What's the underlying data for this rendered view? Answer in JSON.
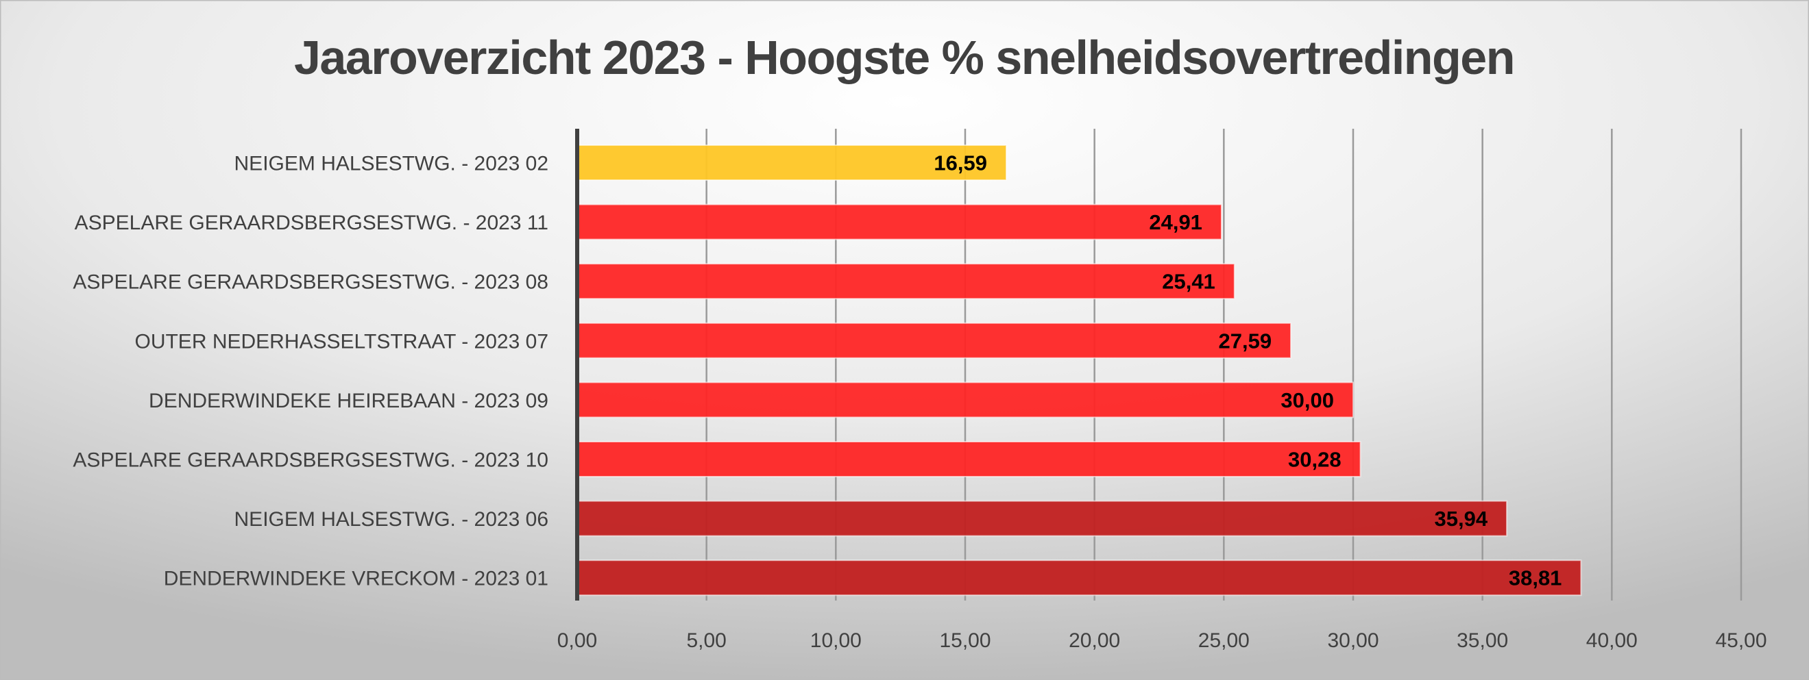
{
  "chart_data": {
    "type": "bar",
    "orientation": "horizontal",
    "title": "Jaaroverzicht 2023 - Hoogste  % snelheidsovertredingen",
    "xlabel": "",
    "ylabel": "",
    "categories": [
      "NEIGEM HALSESTWG. - 2023 02",
      "ASPELARE GERAARDSBERGSESTWG. - 2023 11",
      "ASPELARE GERAARDSBERGSESTWG. - 2023 08",
      "OUTER NEDERHASSELTSTRAAT - 2023 07",
      "DENDERWINDEKE HEIREBAAN - 2023 09",
      "ASPELARE GERAARDSBERGSESTWG. - 2023 10",
      "NEIGEM HALSESTWG. - 2023 06",
      "DENDERWINDEKE VRECKOM - 2023 01"
    ],
    "values": [
      16.59,
      24.91,
      25.41,
      27.59,
      30.0,
      30.28,
      35.94,
      38.81
    ],
    "value_labels": [
      "16,59",
      "24,91",
      "25,41",
      "27,59",
      "30,00",
      "30,28",
      "35,94",
      "38,81"
    ],
    "bar_colors": [
      "#FFC726",
      "#FF2626",
      "#FF2626",
      "#FF2626",
      "#FF2626",
      "#FF2626",
      "#C22020",
      "#C22020"
    ],
    "xlim": [
      0,
      45
    ],
    "xticks": [
      0,
      5,
      10,
      15,
      20,
      25,
      30,
      35,
      40,
      45
    ],
    "xtick_labels": [
      "0,00",
      "5,00",
      "10,00",
      "15,00",
      "20,00",
      "25,00",
      "30,00",
      "35,00",
      "40,00",
      "45,00"
    ],
    "grid": "vertical",
    "legend": "none"
  }
}
